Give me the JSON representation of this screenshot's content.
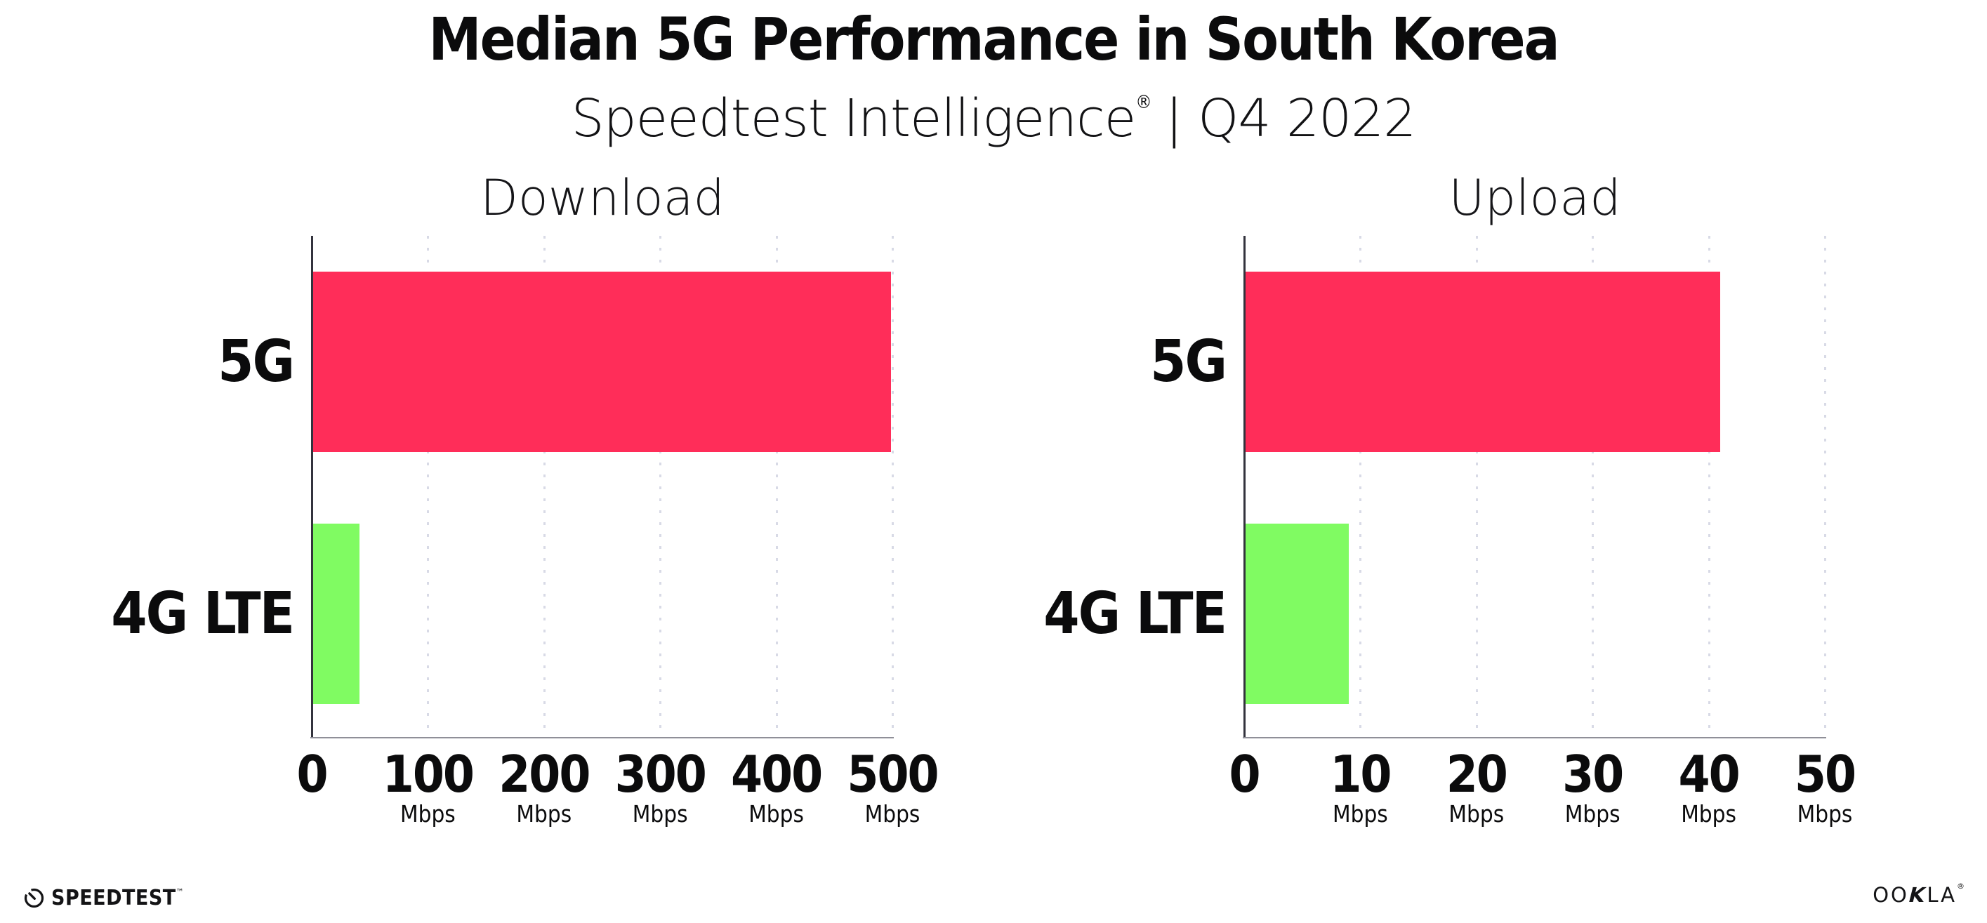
{
  "header": {
    "title": "Median 5G Performance in South Korea",
    "subtitle_brand": "Speedtest Intelligence",
    "subtitle_reg": "®",
    "subtitle_rest": "| Q4 2022"
  },
  "footer": {
    "speedtest_label": "SPEEDTEST",
    "speedtest_tm": "™",
    "speedtest_icon": "speedtest-gauge-icon",
    "ookla_label": "OOKLA",
    "ookla_reg": "®"
  },
  "colors": {
    "bar_5g": "#ff2d59",
    "bar_4g_lte": "#80fb62",
    "gridline": "#d8dae6",
    "axis_left": "#33333d",
    "axis_bottom": "#8f8f98",
    "text": "#0b0b0c",
    "background": "#ffffff"
  },
  "chart_data": {
    "type": "bar",
    "orientation": "horizontal",
    "title": "Median 5G Performance in South Korea",
    "subtitle": "Speedtest Intelligence® | Q4 2022",
    "grid": "vertical-dotted",
    "legend": false,
    "series_colors": {
      "5G": "#ff2d59",
      "4G LTE": "#80fb62"
    },
    "charts": [
      {
        "title": "Download",
        "categories": [
          "5G",
          "4G LTE"
        ],
        "values": [
          499,
          41
        ],
        "ticks": [
          0,
          100,
          200,
          300,
          400,
          500
        ],
        "xlim": [
          0,
          500
        ],
        "tick_unit": "Mbps"
      },
      {
        "title": "Upload",
        "categories": [
          "5G",
          "4G LTE"
        ],
        "values": [
          41,
          9
        ],
        "ticks": [
          0,
          10,
          20,
          30,
          40,
          50
        ],
        "xlim": [
          0,
          50
        ],
        "tick_unit": "Mbps"
      }
    ]
  }
}
